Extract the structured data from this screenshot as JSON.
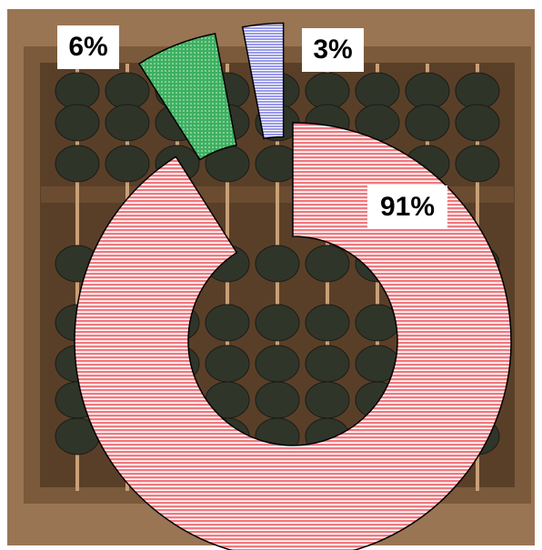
{
  "chart_data": {
    "type": "pie",
    "values": [
      91,
      6,
      3
    ],
    "value_labels": [
      "91%",
      "6%",
      "3%"
    ],
    "colors": [
      "#f07a80",
      "#3cb060",
      "#9a9ae8"
    ],
    "exploded": [
      false,
      true,
      true
    ]
  }
}
